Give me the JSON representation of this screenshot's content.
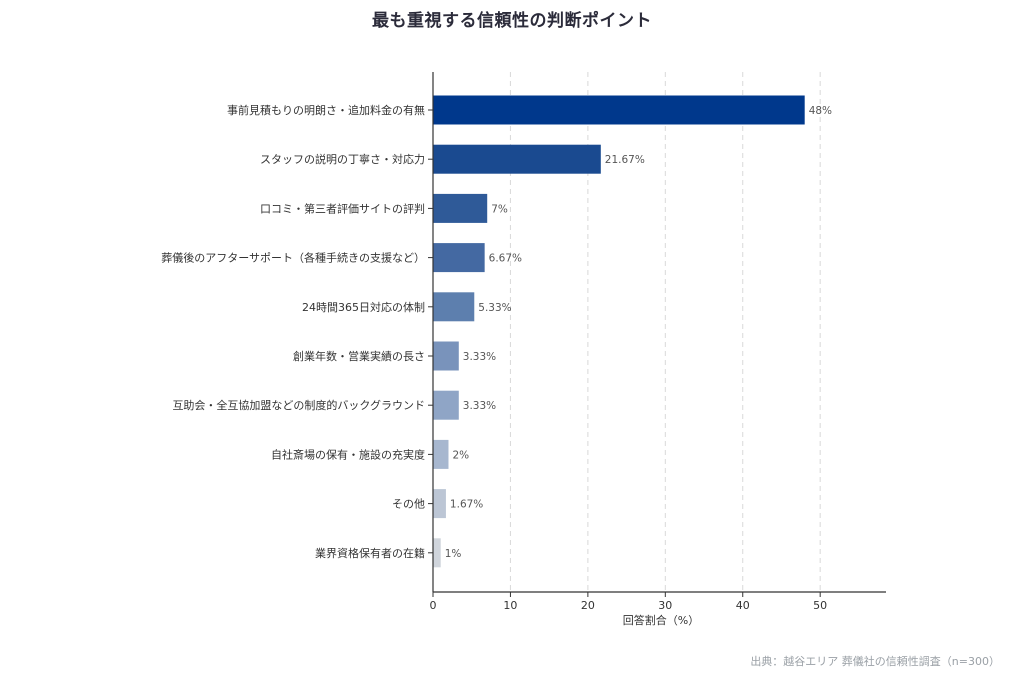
{
  "chart_data": {
    "type": "bar",
    "orientation": "horizontal",
    "title": "最も重視する信頼性の判断ポイント",
    "xlabel": "回答割合（%）",
    "xlim": [
      0,
      58.5
    ],
    "xticks": [
      0,
      10,
      20,
      30,
      40,
      50
    ],
    "grid": "vertical-dashed",
    "categories": [
      "事前見積もりの明朗さ・追加料金の有無",
      "スタッフの説明の丁寧さ・対応力",
      "口コミ・第三者評価サイトの評判",
      "葬儀後のアフターサポート（各種手続きの支援など）",
      "24時間365日対応の体制",
      "創業年数・営業実績の長さ",
      "互助会・全互協加盟などの制度的バックグラウンド",
      "自社斎場の保有・施設の充実度",
      "その他",
      "業界資格保有者の在籍"
    ],
    "values": [
      48,
      21.67,
      7,
      6.67,
      5.33,
      3.33,
      3.33,
      2,
      1.67,
      1
    ],
    "value_labels": [
      "48%",
      "21.67%",
      "7%",
      "6.67%",
      "5.33%",
      "3.33%",
      "3.33%",
      "2%",
      "1.67%",
      "1%"
    ],
    "colors": [
      "#00388c",
      "#1a4a90",
      "#2f5a98",
      "#4469a2",
      "#5d7fae",
      "#7993bb",
      "#8fa5c6",
      "#a7b7cf",
      "#bcc6d5",
      "#d0d5dc"
    ]
  },
  "source": "出典：越谷エリア 葬儀社の信頼性調査（n=300）"
}
